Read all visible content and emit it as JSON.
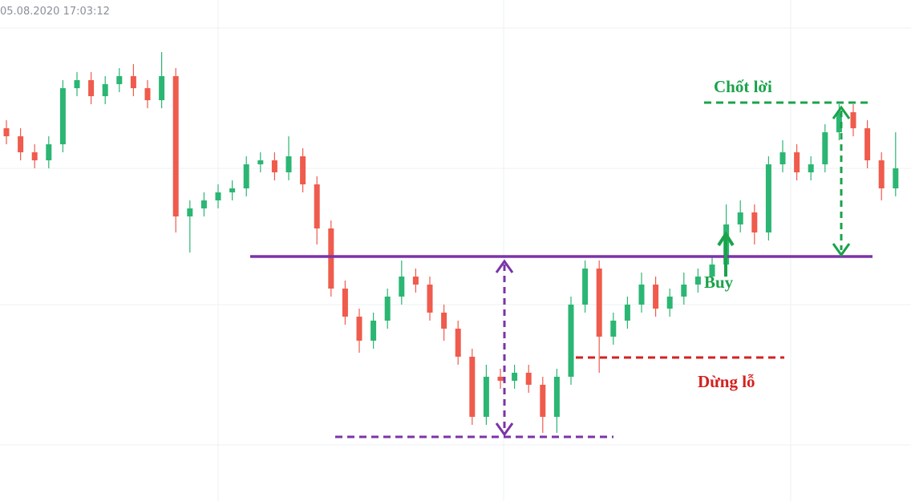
{
  "chart_data": {
    "type": "candlestick",
    "timestamp": "05.08.2020 17:03:12",
    "annotations": {
      "take_profit": "Chốt lời",
      "buy": "Buy",
      "stop_loss": "Dừng lỗ"
    },
    "up_color": "#2bb673",
    "down_color": "#ef5b4c",
    "ylim": [
      0,
      625
    ],
    "open": [
      465,
      455,
      435,
      425,
      445,
      515,
      525,
      505,
      520,
      530,
      515,
      500,
      530,
      355,
      365,
      375,
      385,
      390,
      420,
      425,
      410,
      430,
      395,
      340,
      265,
      230,
      200,
      225,
      255,
      280,
      270,
      235,
      215,
      180,
      105,
      155,
      150,
      160,
      145,
      105,
      155,
      245,
      290,
      205,
      225,
      245,
      270,
      240,
      255,
      270,
      280,
      295,
      345,
      360,
      335,
      420,
      435,
      410,
      420,
      460,
      485,
      465,
      425,
      390
    ],
    "high": [
      475,
      465,
      445,
      455,
      525,
      535,
      535,
      530,
      540,
      545,
      525,
      560,
      540,
      375,
      385,
      395,
      400,
      430,
      435,
      435,
      455,
      440,
      405,
      350,
      275,
      240,
      235,
      265,
      300,
      290,
      280,
      245,
      225,
      190,
      170,
      165,
      170,
      170,
      155,
      165,
      255,
      300,
      300,
      235,
      255,
      285,
      280,
      265,
      285,
      290,
      305,
      370,
      375,
      370,
      430,
      450,
      445,
      430,
      470,
      495,
      495,
      475,
      435,
      460
    ],
    "low": [
      445,
      425,
      415,
      415,
      435,
      505,
      495,
      495,
      510,
      505,
      490,
      490,
      335,
      310,
      355,
      365,
      375,
      380,
      410,
      400,
      400,
      385,
      320,
      255,
      220,
      185,
      190,
      215,
      245,
      260,
      225,
      200,
      170,
      95,
      95,
      140,
      140,
      135,
      85,
      85,
      145,
      235,
      160,
      195,
      215,
      235,
      230,
      230,
      245,
      260,
      270,
      285,
      335,
      320,
      325,
      410,
      400,
      400,
      410,
      450,
      455,
      415,
      375,
      380
    ],
    "close": [
      455,
      435,
      425,
      445,
      515,
      525,
      505,
      520,
      530,
      515,
      500,
      530,
      355,
      365,
      375,
      385,
      390,
      420,
      425,
      410,
      430,
      395,
      340,
      265,
      230,
      200,
      225,
      255,
      280,
      270,
      235,
      215,
      180,
      105,
      155,
      150,
      160,
      145,
      105,
      155,
      245,
      290,
      205,
      225,
      245,
      270,
      240,
      255,
      270,
      280,
      295,
      345,
      360,
      335,
      420,
      435,
      410,
      420,
      460,
      485,
      465,
      425,
      390,
      415
    ]
  }
}
